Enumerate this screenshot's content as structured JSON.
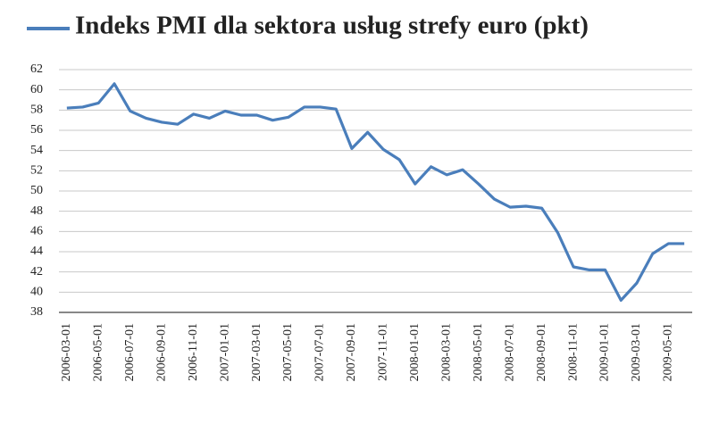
{
  "chart_data": {
    "type": "line",
    "categories": [
      "2006-03-01",
      null,
      "2006-05-01",
      null,
      "2006-07-01",
      null,
      "2006-09-01",
      null,
      "2006-11-01",
      null,
      "2007-01-01",
      null,
      "2007-03-01",
      null,
      "2007-05-01",
      null,
      "2007-07-01",
      null,
      "2007-09-01",
      null,
      "2007-11-01",
      null,
      "2008-01-01",
      null,
      "2008-03-01",
      null,
      "2008-05-01",
      null,
      "2008-07-01",
      null,
      "2008-09-01",
      null,
      "2008-11-01",
      null,
      "2009-01-01",
      null,
      "2009-03-01",
      null,
      "2009-05-01",
      null
    ],
    "series": [
      {
        "name": "Indeks PMI dla sektora usług strefy euro (pkt)",
        "color": "#4a7ebb",
        "values": [
          58.2,
          58.3,
          58.7,
          60.6,
          57.9,
          57.2,
          56.8,
          56.6,
          57.6,
          57.2,
          57.9,
          57.5,
          57.5,
          57.0,
          57.3,
          58.3,
          58.3,
          58.1,
          54.2,
          55.8,
          54.1,
          53.1,
          50.7,
          52.4,
          51.6,
          52.1,
          50.7,
          49.2,
          48.4,
          48.5,
          48.3,
          45.9,
          42.5,
          42.2,
          42.2,
          39.2,
          40.9,
          43.8,
          44.8,
          44.8
        ]
      }
    ],
    "ylim": [
      38,
      62
    ],
    "yticks": [
      38,
      40,
      42,
      44,
      46,
      48,
      50,
      52,
      54,
      56,
      58,
      60,
      62
    ],
    "grid": true
  }
}
